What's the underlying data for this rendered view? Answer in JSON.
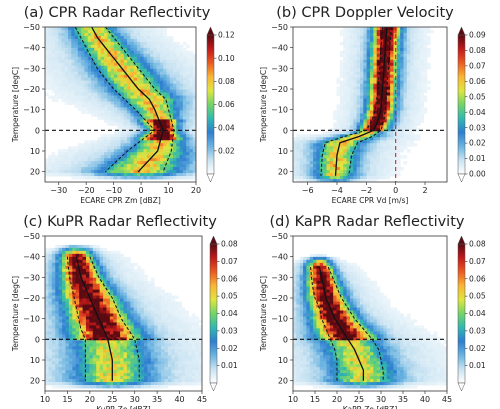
{
  "colormap": [
    "#ffffff",
    "#c9e3f2",
    "#6ab3e0",
    "#2f7fd0",
    "#33b8b0",
    "#74d46a",
    "#dfe640",
    "#f8b535",
    "#ea5a22",
    "#c01a1a",
    "#5a0a12"
  ],
  "chart_data": [
    {
      "type": "heatmap",
      "title": "(a) CPR Radar Reflectivity",
      "xlabel": "ECARE CPR Zm [dBZ]",
      "ylabel": "Temperature [degC]",
      "xlim": [
        -35,
        20
      ],
      "ylim": [
        25,
        -50
      ],
      "xticks": [
        "−30",
        "−20",
        "−10",
        "0",
        "10",
        "20"
      ],
      "xtick_values": [
        -30,
        -20,
        -10,
        0,
        10,
        20
      ],
      "yticks": [
        "−50",
        "−40",
        "−30",
        "−20",
        "−10",
        "0",
        "10",
        "20"
      ],
      "ytick_values": [
        -50,
        -40,
        -30,
        -20,
        -10,
        0,
        10,
        20
      ],
      "colorbar": {
        "min": 0.0,
        "max": 0.12,
        "ticks": [
          "0.02",
          "0.04",
          "0.06",
          "0.08",
          "0.10",
          "0.12"
        ],
        "tick_values": [
          0.02,
          0.04,
          0.06,
          0.08,
          0.1,
          0.12
        ]
      },
      "freezing_level": 0,
      "vertical_reference": null,
      "density_peak": 0.12,
      "series": [
        {
          "name": "median",
          "style": "solid",
          "x": [
            -18,
            -16,
            -13,
            -10,
            -7,
            -4,
            -1,
            3,
            5,
            8,
            6,
            -1
          ],
          "y": [
            -50,
            -45,
            -40,
            -35,
            -30,
            -25,
            -20,
            -15,
            -10,
            0,
            10,
            20
          ]
        },
        {
          "name": "lower",
          "style": "dashed",
          "x": [
            -24,
            -22,
            -20,
            -18,
            -16,
            -13,
            -10,
            -6,
            -2,
            5,
            -5,
            -13
          ],
          "y": [
            -50,
            -45,
            -40,
            -35,
            -30,
            -25,
            -20,
            -15,
            -10,
            0,
            10,
            20
          ]
        },
        {
          "name": "upper",
          "style": "dashed",
          "x": [
            -13,
            -10,
            -7,
            -4,
            -1,
            2,
            5,
            9,
            10,
            12,
            11,
            8
          ],
          "y": [
            -50,
            -45,
            -40,
            -35,
            -30,
            -25,
            -20,
            -15,
            -10,
            0,
            10,
            20
          ]
        }
      ]
    },
    {
      "type": "heatmap",
      "title": "(b) CPR Doppler Velocity",
      "xlabel": "ECARE CPR Vd [m/s]",
      "ylabel": "Temperature [degC]",
      "xlim": [
        -7,
        3.5
      ],
      "ylim": [
        25,
        -50
      ],
      "xticks": [
        "−6",
        "−4",
        "−2",
        "0",
        "2"
      ],
      "xtick_values": [
        -6,
        -4,
        -2,
        0,
        2
      ],
      "yticks": [
        "−50",
        "−40",
        "−30",
        "−20",
        "−10",
        "0",
        "10",
        "20"
      ],
      "ytick_values": [
        -50,
        -40,
        -30,
        -20,
        -10,
        0,
        10,
        20
      ],
      "colorbar": {
        "min": 0.0,
        "max": 0.09,
        "ticks": [
          "0.00",
          "0.01",
          "0.02",
          "0.03",
          "0.04",
          "0.05",
          "0.06",
          "0.07",
          "0.08",
          "0.09"
        ],
        "tick_values": [
          0,
          0.01,
          0.02,
          0.03,
          0.04,
          0.05,
          0.06,
          0.07,
          0.08,
          0.09
        ]
      },
      "freezing_level": 0,
      "vertical_reference": 0,
      "density_peak": 0.09,
      "series": [
        {
          "name": "median",
          "style": "solid",
          "x": [
            -0.6,
            -0.7,
            -0.8,
            -0.9,
            -1.0,
            -1.2,
            -1.5,
            -2.5,
            -3.8,
            -4.0,
            -4.1
          ],
          "y": [
            -50,
            -40,
            -30,
            -20,
            -10,
            -5,
            0,
            3,
            6,
            12,
            22
          ]
        },
        {
          "name": "lower",
          "style": "dashed",
          "x": [
            -0.9,
            -1.0,
            -1.1,
            -1.2,
            -1.4,
            -1.6,
            -2.0,
            -3.5,
            -4.8,
            -5.0,
            -5.1
          ],
          "y": [
            -50,
            -40,
            -30,
            -20,
            -10,
            -5,
            0,
            3,
            6,
            12,
            22
          ]
        },
        {
          "name": "upper",
          "style": "dashed",
          "x": [
            -0.3,
            -0.4,
            -0.5,
            -0.6,
            -0.7,
            -0.8,
            -1.0,
            -1.6,
            -2.6,
            -3.0,
            -3.2
          ],
          "y": [
            -50,
            -40,
            -30,
            -20,
            -10,
            -5,
            0,
            3,
            6,
            12,
            22
          ]
        }
      ]
    },
    {
      "type": "heatmap",
      "title": "(c) KuPR Radar Reflectivity",
      "xlabel": "KuPR Ze [dBZ]",
      "ylabel": "Temperature [degC]",
      "xlim": [
        10,
        45
      ],
      "ylim": [
        25,
        -50
      ],
      "xticks": [
        "10",
        "15",
        "20",
        "25",
        "30",
        "35",
        "40",
        "45"
      ],
      "xtick_values": [
        10,
        15,
        20,
        25,
        30,
        35,
        40,
        45
      ],
      "yticks": [
        "−50",
        "−40",
        "−30",
        "−20",
        "−10",
        "0",
        "10",
        "20"
      ],
      "ytick_values": [
        -50,
        -40,
        -30,
        -20,
        -10,
        0,
        10,
        20
      ],
      "colorbar": {
        "min": 0.0,
        "max": 0.08,
        "ticks": [
          "0.01",
          "0.02",
          "0.03",
          "0.04",
          "0.05",
          "0.06",
          "0.07",
          "0.08"
        ],
        "tick_values": [
          0.01,
          0.02,
          0.03,
          0.04,
          0.05,
          0.06,
          0.07,
          0.08
        ]
      },
      "freezing_level": 0,
      "vertical_reference": null,
      "density_peak": 0.08,
      "series": [
        {
          "name": "median",
          "style": "solid",
          "x": [
            17,
            17.5,
            18,
            19,
            20,
            21,
            22,
            23,
            24,
            25,
            25
          ],
          "y": [
            -40,
            -35,
            -30,
            -25,
            -20,
            -15,
            -10,
            -5,
            0,
            10,
            20
          ]
        },
        {
          "name": "lower",
          "style": "dashed",
          "x": [
            15,
            15.2,
            15.5,
            16,
            16.5,
            17,
            17.5,
            18,
            19,
            19,
            19
          ],
          "y": [
            -40,
            -35,
            -30,
            -25,
            -20,
            -15,
            -10,
            -5,
            0,
            10,
            20
          ]
        },
        {
          "name": "upper",
          "style": "dashed",
          "x": [
            20,
            21,
            22,
            23.5,
            25,
            26,
            27,
            28.5,
            30,
            31,
            31
          ],
          "y": [
            -40,
            -35,
            -30,
            -25,
            -20,
            -15,
            -10,
            -5,
            0,
            10,
            20
          ]
        }
      ]
    },
    {
      "type": "heatmap",
      "title": "(d) KaPR Radar Reflectivity",
      "xlabel": "KaPR Ze [dBZ]",
      "ylabel": "Temperature [degC]",
      "xlim": [
        10,
        45
      ],
      "ylim": [
        25,
        -50
      ],
      "xticks": [
        "10",
        "15",
        "20",
        "25",
        "30",
        "35",
        "40",
        "45"
      ],
      "xtick_values": [
        10,
        15,
        20,
        25,
        30,
        35,
        40,
        45
      ],
      "yticks": [
        "−50",
        "−40",
        "−30",
        "−20",
        "−10",
        "0",
        "10",
        "20"
      ],
      "ytick_values": [
        -50,
        -40,
        -30,
        -20,
        -10,
        0,
        10,
        20
      ],
      "colorbar": {
        "min": 0.0,
        "max": 0.08,
        "ticks": [
          "0.01",
          "0.02",
          "0.03",
          "0.04",
          "0.05",
          "0.06",
          "0.07",
          "0.08"
        ],
        "tick_values": [
          0.01,
          0.02,
          0.03,
          0.04,
          0.05,
          0.06,
          0.07,
          0.08
        ]
      },
      "freezing_level": 0,
      "vertical_reference": null,
      "density_peak": 0.08,
      "series": [
        {
          "name": "median",
          "style": "solid",
          "x": [
            16,
            16.5,
            17,
            17.5,
            18.5,
            19.5,
            21,
            22.5,
            24,
            25,
            26,
            26
          ],
          "y": [
            -35,
            -30,
            -25,
            -20,
            -15,
            -10,
            -5,
            0,
            5,
            10,
            15,
            20
          ]
        },
        {
          "name": "lower",
          "style": "dashed",
          "x": [
            14,
            14.2,
            14.5,
            15,
            16,
            16.5,
            17.5,
            18.5,
            19.5,
            20,
            20,
            20
          ],
          "y": [
            -35,
            -30,
            -25,
            -20,
            -15,
            -10,
            -5,
            0,
            5,
            10,
            15,
            20
          ]
        },
        {
          "name": "upper",
          "style": "dashed",
          "x": [
            18,
            19,
            20,
            21,
            22.5,
            24,
            26,
            28,
            29.5,
            30,
            30.5,
            30.5
          ],
          "y": [
            -35,
            -30,
            -25,
            -20,
            -15,
            -10,
            -5,
            0,
            5,
            10,
            15,
            20
          ]
        }
      ]
    }
  ]
}
